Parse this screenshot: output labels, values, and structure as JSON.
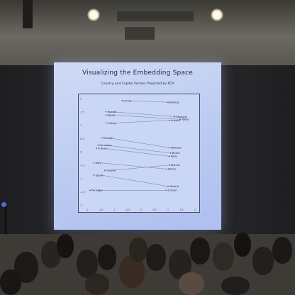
{
  "slide": {
    "title": "Visualizing the Embedding Space",
    "subtitle": "Country and Capital Vectors Projected by PCA"
  },
  "chart_data": {
    "type": "scatter",
    "title": "Country and Capital Vectors Projected by PCA",
    "xlim": [
      -2,
      2
    ],
    "ylim": [
      -2,
      2
    ],
    "x_ticks": [
      "-2",
      "-1.5",
      "-1",
      "-0.5",
      "0",
      "0.5",
      "1",
      "1.5",
      "2"
    ],
    "y_ticks": [
      "2",
      "1.5",
      "1",
      "0.5",
      "0",
      "-0.5",
      "-1",
      "-1.5",
      "-2"
    ],
    "points": [
      {
        "label": "China",
        "x": -0.7,
        "y": 1.92
      },
      {
        "label": "Beijing",
        "x": 1.0,
        "y": 1.86
      },
      {
        "label": "Russia",
        "x": -1.3,
        "y": 1.5
      },
      {
        "label": "Japan",
        "x": -1.3,
        "y": 1.38
      },
      {
        "label": "Moscow",
        "x": 1.25,
        "y": 1.32
      },
      {
        "label": "Ankara",
        "x": 1.05,
        "y": 1.18
      },
      {
        "label": "Tokyo",
        "x": 1.45,
        "y": 1.22
      },
      {
        "label": "Turkey",
        "x": -1.3,
        "y": 1.08
      },
      {
        "label": "Poland",
        "x": -1.45,
        "y": 0.52
      },
      {
        "label": "Germany",
        "x": -1.6,
        "y": 0.25
      },
      {
        "label": "France",
        "x": -1.65,
        "y": 0.13
      },
      {
        "label": "Warsaw",
        "x": 1.05,
        "y": 0.15
      },
      {
        "label": "Berlin",
        "x": 1.1,
        "y": -0.05
      },
      {
        "label": "Paris",
        "x": 1.05,
        "y": -0.17
      },
      {
        "label": "Italy",
        "x": -1.75,
        "y": -0.42
      },
      {
        "label": "Athens",
        "x": 1.05,
        "y": -0.5
      },
      {
        "label": "Greece",
        "x": -1.35,
        "y": -0.7
      },
      {
        "label": "Rome",
        "x": 0.95,
        "y": -0.65
      },
      {
        "label": "Spain",
        "x": -1.75,
        "y": -0.88
      },
      {
        "label": "Portugal",
        "x": -1.9,
        "y": -1.45
      },
      {
        "label": "Madrid",
        "x": 1.0,
        "y": -1.3
      },
      {
        "label": "Lisbon",
        "x": 0.95,
        "y": -1.45
      }
    ],
    "links": [
      [
        "China",
        "Beijing"
      ],
      [
        "Russia",
        "Moscow"
      ],
      [
        "Japan",
        "Tokyo"
      ],
      [
        "Turkey",
        "Ankara"
      ],
      [
        "Poland",
        "Warsaw"
      ],
      [
        "Germany",
        "Berlin"
      ],
      [
        "France",
        "Paris"
      ],
      [
        "Italy",
        "Rome"
      ],
      [
        "Greece",
        "Athens"
      ],
      [
        "Spain",
        "Madrid"
      ],
      [
        "Portugal",
        "Lisbon"
      ]
    ]
  },
  "colors": {
    "point": "#1a2040",
    "link": "#5a6488",
    "axis": "#444c66"
  }
}
